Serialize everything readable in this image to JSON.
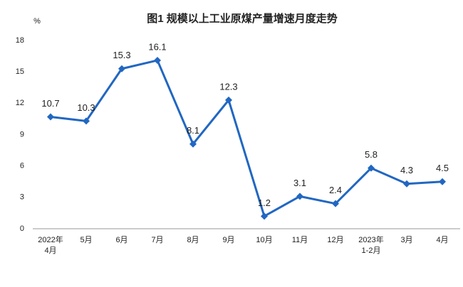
{
  "chart_data": {
    "type": "line",
    "title": "图1  规模以上工业原煤产量增速月度走势",
    "y_label": "%",
    "categories": [
      "2022年\n4月",
      "5月",
      "6月",
      "7月",
      "8月",
      "9月",
      "10月",
      "11月",
      "12月",
      "2023年\n1-2月",
      "3月",
      "4月"
    ],
    "series": [
      {
        "name": "规模以上工业原煤产量增速",
        "color": "#2167c2",
        "values": [
          10.7,
          10.3,
          15.3,
          16.1,
          8.1,
          12.3,
          1.2,
          3.1,
          2.4,
          5.8,
          4.3,
          4.5
        ]
      }
    ],
    "ylim": [
      0,
      18
    ],
    "yticks": [
      0,
      3,
      6,
      9,
      12,
      15,
      18
    ],
    "grid": false
  }
}
